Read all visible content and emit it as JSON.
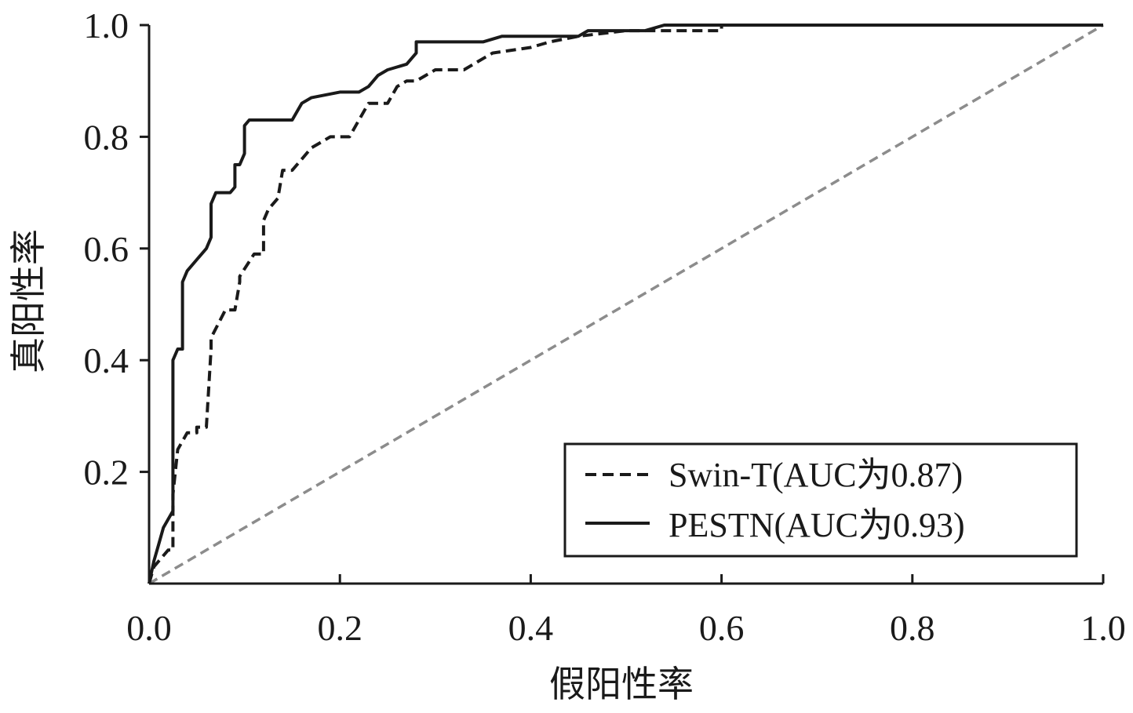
{
  "chart_data": {
    "type": "line",
    "title": "",
    "xlabel": "假阳性率",
    "ylabel": "真阳性率",
    "xlim": [
      0,
      1
    ],
    "ylim": [
      0,
      1
    ],
    "grid": false,
    "legend_position": "bottom-right",
    "x_ticks": [
      0.0,
      0.2,
      0.4,
      0.6,
      0.8,
      1.0
    ],
    "y_ticks": [
      0.2,
      0.4,
      0.6,
      0.8,
      1.0
    ],
    "x_tick_labels": [
      "0.0",
      "0.2",
      "0.4",
      "0.6",
      "0.8",
      "1.0"
    ],
    "y_tick_labels": [
      "0.2",
      "0.4",
      "0.6",
      "0.8",
      "1.0"
    ],
    "series": [
      {
        "name": "Swin-T(AUC为0.87)",
        "style": "dashed",
        "color": "#1a1a1a",
        "points": [
          [
            0.0,
            0.0
          ],
          [
            0.005,
            0.03
          ],
          [
            0.01,
            0.04
          ],
          [
            0.02,
            0.06
          ],
          [
            0.025,
            0.06
          ],
          [
            0.025,
            0.16
          ],
          [
            0.03,
            0.24
          ],
          [
            0.04,
            0.27
          ],
          [
            0.05,
            0.27
          ],
          [
            0.05,
            0.28
          ],
          [
            0.06,
            0.28
          ],
          [
            0.065,
            0.42
          ],
          [
            0.065,
            0.44
          ],
          [
            0.08,
            0.49
          ],
          [
            0.09,
            0.49
          ],
          [
            0.095,
            0.54
          ],
          [
            0.095,
            0.55
          ],
          [
            0.11,
            0.59
          ],
          [
            0.115,
            0.59
          ],
          [
            0.12,
            0.59
          ],
          [
            0.12,
            0.65
          ],
          [
            0.125,
            0.67
          ],
          [
            0.13,
            0.68
          ],
          [
            0.135,
            0.69
          ],
          [
            0.14,
            0.74
          ],
          [
            0.15,
            0.74
          ],
          [
            0.16,
            0.76
          ],
          [
            0.17,
            0.78
          ],
          [
            0.18,
            0.79
          ],
          [
            0.19,
            0.8
          ],
          [
            0.2,
            0.8
          ],
          [
            0.21,
            0.8
          ],
          [
            0.22,
            0.83
          ],
          [
            0.23,
            0.86
          ],
          [
            0.25,
            0.86
          ],
          [
            0.26,
            0.89
          ],
          [
            0.27,
            0.9
          ],
          [
            0.28,
            0.9
          ],
          [
            0.29,
            0.91
          ],
          [
            0.3,
            0.92
          ],
          [
            0.33,
            0.92
          ],
          [
            0.35,
            0.94
          ],
          [
            0.36,
            0.95
          ],
          [
            0.4,
            0.96
          ],
          [
            0.42,
            0.97
          ],
          [
            0.45,
            0.98
          ],
          [
            0.5,
            0.99
          ],
          [
            0.55,
            0.99
          ],
          [
            0.6,
            0.99
          ],
          [
            0.6,
            1.0
          ],
          [
            1.0,
            1.0
          ]
        ]
      },
      {
        "name": "PESTN(AUC为0.93)",
        "style": "solid",
        "color": "#1a1a1a",
        "points": [
          [
            0.0,
            0.0
          ],
          [
            0.005,
            0.04
          ],
          [
            0.01,
            0.07
          ],
          [
            0.015,
            0.1
          ],
          [
            0.025,
            0.13
          ],
          [
            0.025,
            0.4
          ],
          [
            0.03,
            0.42
          ],
          [
            0.035,
            0.42
          ],
          [
            0.035,
            0.54
          ],
          [
            0.04,
            0.56
          ],
          [
            0.05,
            0.58
          ],
          [
            0.06,
            0.6
          ],
          [
            0.065,
            0.62
          ],
          [
            0.065,
            0.68
          ],
          [
            0.07,
            0.7
          ],
          [
            0.085,
            0.7
          ],
          [
            0.09,
            0.71
          ],
          [
            0.09,
            0.75
          ],
          [
            0.095,
            0.75
          ],
          [
            0.1,
            0.77
          ],
          [
            0.1,
            0.82
          ],
          [
            0.105,
            0.83
          ],
          [
            0.15,
            0.83
          ],
          [
            0.16,
            0.86
          ],
          [
            0.17,
            0.87
          ],
          [
            0.2,
            0.88
          ],
          [
            0.22,
            0.88
          ],
          [
            0.23,
            0.89
          ],
          [
            0.24,
            0.91
          ],
          [
            0.25,
            0.92
          ],
          [
            0.27,
            0.93
          ],
          [
            0.28,
            0.95
          ],
          [
            0.28,
            0.97
          ],
          [
            0.35,
            0.97
          ],
          [
            0.37,
            0.98
          ],
          [
            0.45,
            0.98
          ],
          [
            0.46,
            0.99
          ],
          [
            0.52,
            0.99
          ],
          [
            0.54,
            1.0
          ],
          [
            1.0,
            1.0
          ]
        ]
      },
      {
        "name": "",
        "style": "dashed-gray",
        "color": "#8c8c8c",
        "points": [
          [
            0.0,
            0.0
          ],
          [
            1.0,
            1.0
          ]
        ]
      }
    ]
  }
}
